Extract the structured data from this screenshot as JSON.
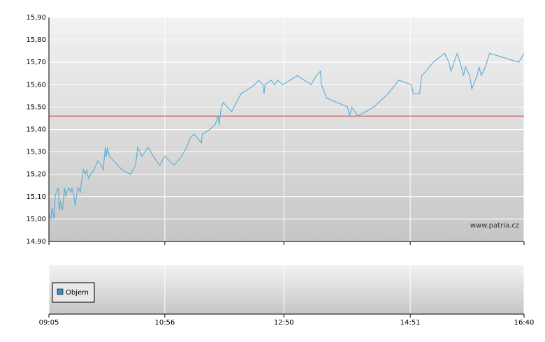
{
  "chart_data": {
    "type": "line",
    "watermark": "www.patria.cz",
    "volume_legend": "Objem",
    "volume_color": "#3d8ec9",
    "xlim": [
      545,
      1000
    ],
    "xticks": [
      {
        "value": 545,
        "label": "09:05"
      },
      {
        "value": 656,
        "label": "10:56"
      },
      {
        "value": 770,
        "label": "12:50"
      },
      {
        "value": 891,
        "label": "14:51"
      },
      {
        "value": 1000,
        "label": "16:40"
      }
    ],
    "ylim": [
      14.9,
      15.9
    ],
    "yticks": [
      {
        "value": 14.9,
        "label": "14,90"
      },
      {
        "value": 15.0,
        "label": "15,00"
      },
      {
        "value": 15.1,
        "label": "15,10"
      },
      {
        "value": 15.2,
        "label": "15,20"
      },
      {
        "value": 15.3,
        "label": "15,30"
      },
      {
        "value": 15.4,
        "label": "15,40"
      },
      {
        "value": 15.5,
        "label": "15,50"
      },
      {
        "value": 15.6,
        "label": "15,60"
      },
      {
        "value": 15.7,
        "label": "15,70"
      },
      {
        "value": 15.8,
        "label": "15,80"
      },
      {
        "value": 15.9,
        "label": "15,90"
      }
    ],
    "grid": true,
    "reference_line": {
      "value": 15.46,
      "color": "#cc3333"
    },
    "x": [
      545,
      547,
      548,
      550,
      551,
      552,
      554,
      555,
      556,
      558,
      560,
      561,
      562,
      564,
      566,
      567,
      569,
      570,
      572,
      573,
      575,
      576,
      578,
      580,
      581,
      583,
      585,
      588,
      592,
      595,
      597,
      599,
      600,
      601,
      603,
      609,
      615,
      623,
      628,
      630,
      634,
      640,
      645,
      651,
      656,
      665,
      672,
      677,
      680,
      684,
      691,
      692,
      699,
      704,
      707,
      708,
      710,
      712,
      720,
      729,
      736,
      742,
      746,
      750,
      751,
      752,
      758,
      761,
      764,
      769,
      776,
      783,
      796,
      801,
      805,
      806,
      811,
      831,
      833,
      835,
      841,
      856,
      870,
      880,
      892,
      894,
      900,
      902,
      906,
      913,
      924,
      928,
      930,
      933,
      936,
      940,
      942,
      944,
      948,
      950,
      955,
      957,
      959,
      963,
      967,
      995,
      1000
    ],
    "series": [
      {
        "color": "#5aacd8",
        "values": [
          15.02,
          15.0,
          15.05,
          15.0,
          15.1,
          15.12,
          15.14,
          15.04,
          15.08,
          15.04,
          15.14,
          15.1,
          15.12,
          15.14,
          15.12,
          15.14,
          15.1,
          15.06,
          15.12,
          15.14,
          15.12,
          15.16,
          15.22,
          15.2,
          15.22,
          15.18,
          15.2,
          15.22,
          15.26,
          15.24,
          15.22,
          15.32,
          15.28,
          15.32,
          15.28,
          15.25,
          15.22,
          15.2,
          15.24,
          15.32,
          15.28,
          15.32,
          15.28,
          15.24,
          15.28,
          15.24,
          15.28,
          15.32,
          15.36,
          15.38,
          15.34,
          15.38,
          15.4,
          15.42,
          15.46,
          15.42,
          15.5,
          15.52,
          15.48,
          15.56,
          15.58,
          15.6,
          15.62,
          15.6,
          15.56,
          15.6,
          15.62,
          15.6,
          15.62,
          15.6,
          15.62,
          15.64,
          15.6,
          15.64,
          15.66,
          15.6,
          15.54,
          15.5,
          15.46,
          15.5,
          15.46,
          15.5,
          15.56,
          15.62,
          15.6,
          15.56,
          15.56,
          15.64,
          15.66,
          15.7,
          15.74,
          15.7,
          15.66,
          15.7,
          15.74,
          15.68,
          15.64,
          15.68,
          15.64,
          15.58,
          15.64,
          15.68,
          15.64,
          15.68,
          15.74,
          15.7,
          15.74
        ]
      }
    ]
  }
}
